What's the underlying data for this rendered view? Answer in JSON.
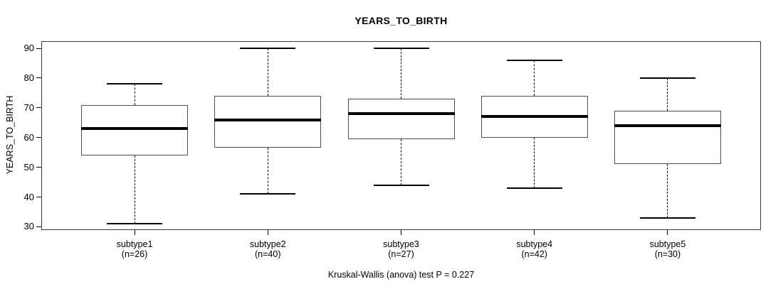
{
  "chart_data": {
    "type": "boxplot",
    "title": "YEARS_TO_BIRTH",
    "ylabel": "YEARS_TO_BIRTH",
    "xlabel": "",
    "annotation": "Kruskal-Wallis (anova) test P = 0.227",
    "yticks": [
      30,
      40,
      50,
      60,
      70,
      80,
      90
    ],
    "ylim": [
      28.9,
      92.4
    ],
    "grid": false,
    "legend": "none",
    "groups": [
      {
        "label": "subtype1",
        "n_label": "(n=26)",
        "n": 26,
        "whisker_low": 31,
        "q1": 54,
        "median": 63,
        "q3": 71,
        "whisker_high": 78
      },
      {
        "label": "subtype2",
        "n_label": "(n=40)",
        "n": 40,
        "whisker_low": 41,
        "q1": 56.5,
        "median": 66,
        "q3": 74,
        "whisker_high": 90
      },
      {
        "label": "subtype3",
        "n_label": "(n=27)",
        "n": 27,
        "whisker_low": 44,
        "q1": 59.5,
        "median": 68,
        "q3": 73,
        "whisker_high": 90
      },
      {
        "label": "subtype4",
        "n_label": "(n=42)",
        "n": 42,
        "whisker_low": 43,
        "q1": 60,
        "median": 67,
        "q3": 74,
        "whisker_high": 86
      },
      {
        "label": "subtype5",
        "n_label": "(n=30)",
        "n": 30,
        "whisker_low": 33,
        "q1": 51,
        "median": 64,
        "q3": 69,
        "whisker_high": 80
      }
    ]
  }
}
